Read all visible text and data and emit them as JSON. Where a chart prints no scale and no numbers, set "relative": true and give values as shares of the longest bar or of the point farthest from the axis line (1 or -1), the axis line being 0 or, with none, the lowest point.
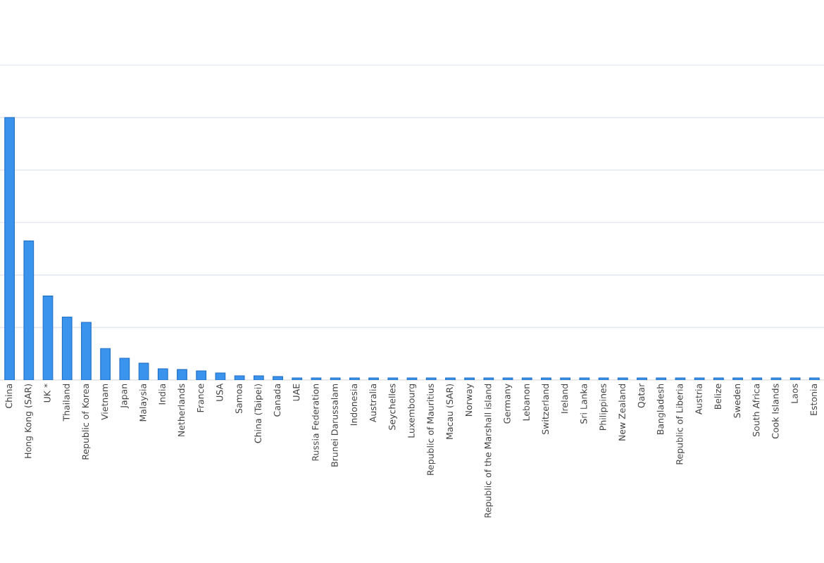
{
  "chart_data": {
    "type": "bar",
    "relative": true,
    "grid": "y",
    "color": "#3a93ec",
    "categories": [
      "China",
      "Hong Kong (SAR)",
      "UK *",
      "Thailand",
      "Republic of Korea",
      "Vietnam",
      "Japan",
      "Malaysia",
      "India",
      "Netherlands",
      "France",
      "USA",
      "Samoa",
      "China (Taipei)",
      "Canada",
      "UAE",
      "Russia Federation",
      "Brunei Darussalam",
      "Indonesia",
      "Australia",
      "Seychelles",
      "Luxembourg",
      "Republic of Mauritius",
      "Macau (SAR)",
      "Norway",
      "Republic of the Marshall island",
      "Germany",
      "Lebanon",
      "Switzerland",
      "Ireland",
      "Sri Lanka",
      "Philippines",
      "New Zealand",
      "Qatar",
      "Bangladesh",
      "Republic of Liberia",
      "Austria",
      "Belize",
      "Sweden",
      "South Africa",
      "Cook Islands",
      "Laos",
      "Estonia"
    ],
    "values": [
      1,
      0.53,
      0.32,
      0.24,
      0.22,
      0.12,
      0.083,
      0.064,
      0.043,
      0.04,
      0.035,
      0.027,
      0.016,
      0.016,
      0.013,
      0.008,
      0.008,
      0.008,
      0.008,
      0.008,
      0.008,
      0.008,
      0.008,
      0.008,
      0.008,
      0.008,
      0.008,
      0.008,
      0.008,
      0.008,
      0.008,
      0.008,
      0.008,
      0.008,
      0.008,
      0.008,
      0.008,
      0.008,
      0.008,
      0.008,
      0.008,
      0.008,
      0.008
    ]
  }
}
